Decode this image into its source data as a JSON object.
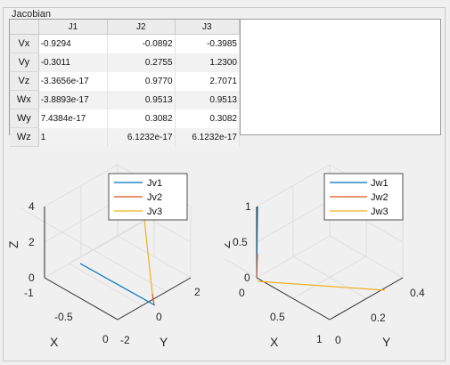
{
  "panel": {
    "title": "Jacobian"
  },
  "table": {
    "columns": [
      "J1",
      "J2",
      "J3"
    ],
    "rows": [
      {
        "label": "Vx",
        "cells": [
          "-0.9294",
          "-0.0892",
          "-0.3985"
        ]
      },
      {
        "label": "Vy",
        "cells": [
          "-0.3011",
          "0.2755",
          "1.2300"
        ]
      },
      {
        "label": "Vz",
        "cells": [
          "-3.3656e-17",
          "0.9770",
          "2.7071"
        ]
      },
      {
        "label": "Wx",
        "cells": [
          "-3.8893e-17",
          "0.9513",
          "0.9513"
        ]
      },
      {
        "label": "Wy",
        "cells": [
          "7.4384e-17",
          "0.3082",
          "0.3082"
        ]
      },
      {
        "label": "Wz",
        "cells": [
          "1",
          "6.1232e-17",
          "6.1232e-17"
        ]
      }
    ]
  },
  "plots": {
    "left": {
      "legend": [
        "Jv1",
        "Jv2",
        "Jv3"
      ],
      "z_ticks": [
        "4",
        "2",
        "0"
      ],
      "x_ticks": [
        "-1",
        "-0.5",
        "0"
      ],
      "y_ticks": [
        "-2",
        "0",
        "2"
      ],
      "xlabel": "X",
      "ylabel": "Y",
      "zlabel": "Z"
    },
    "right": {
      "legend": [
        "Jw1",
        "Jw2",
        "Jw3"
      ],
      "z_ticks": [
        "1",
        "0.5",
        "0"
      ],
      "x_ticks": [
        "0",
        "0.5",
        "1"
      ],
      "y_ticks": [
        "0",
        "0.2",
        "0.4"
      ],
      "xlabel": "X",
      "ylabel": "Y",
      "zlabel": "Z"
    }
  },
  "colors": {
    "series1": "#0072bd",
    "series2": "#d95319",
    "series3": "#edb120"
  }
}
